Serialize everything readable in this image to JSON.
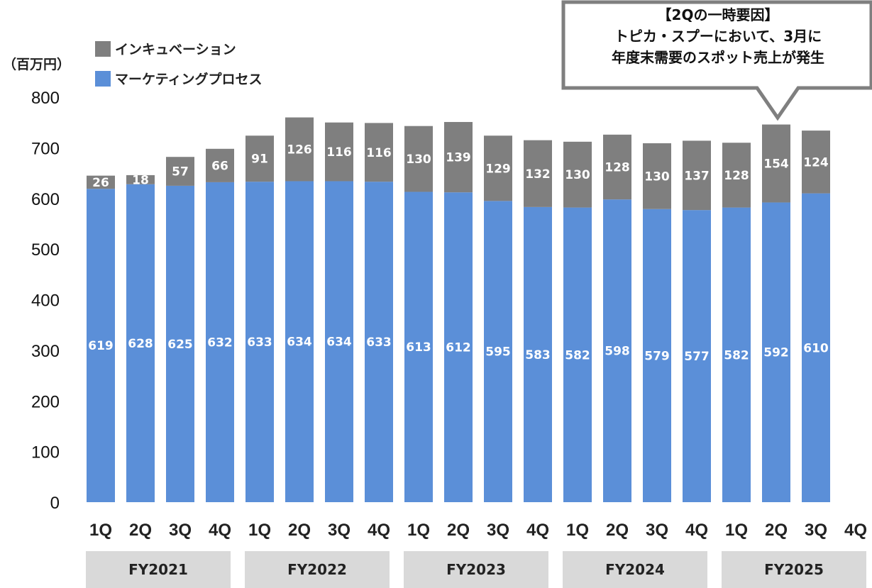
{
  "unit_label": "（百万円）",
  "legend": {
    "incubation": "インキュベーション",
    "marketing": "マーケティングプロセス"
  },
  "callout": {
    "line1": "【2Qの一時要因】",
    "line2": "トピカ・スプーにおいて、3月に",
    "line3": "年度末需要のスポット売上が発生"
  },
  "colors": {
    "marketing": "#5b8fd8",
    "incubation": "#7f7f7f",
    "fy_band": "#d9d9d9"
  },
  "fiscal_years": [
    "FY2021",
    "FY2022",
    "FY2023",
    "FY2024",
    "FY2025"
  ],
  "chart_data": {
    "type": "bar",
    "stacked": true,
    "ylim": [
      0,
      800
    ],
    "yticks": [
      0,
      100,
      200,
      300,
      400,
      500,
      600,
      700,
      800
    ],
    "categories": [
      "1Q",
      "2Q",
      "3Q",
      "4Q",
      "1Q",
      "2Q",
      "3Q",
      "4Q",
      "1Q",
      "2Q",
      "3Q",
      "4Q",
      "1Q",
      "2Q",
      "3Q",
      "4Q",
      "1Q",
      "2Q",
      "3Q",
      "4Q"
    ],
    "series": [
      {
        "name": "マーケティングプロセス",
        "values": [
          619,
          628,
          625,
          632,
          633,
          634,
          634,
          633,
          613,
          612,
          595,
          583,
          582,
          598,
          579,
          577,
          582,
          592,
          610,
          null
        ]
      },
      {
        "name": "インキュベーション",
        "values": [
          26,
          18,
          57,
          66,
          91,
          126,
          116,
          116,
          130,
          139,
          129,
          132,
          130,
          128,
          130,
          137,
          128,
          154,
          124,
          null
        ]
      }
    ]
  }
}
